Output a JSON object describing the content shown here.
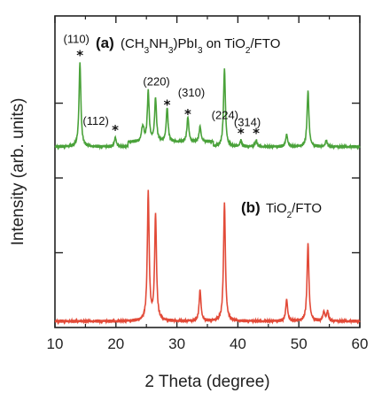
{
  "chart_data": {
    "type": "line",
    "xlabel": "2 Theta (degree)",
    "ylabel": "Intensity (arb. units)",
    "xlim": [
      10,
      60
    ],
    "x_ticks": [
      10,
      20,
      30,
      40,
      50,
      60
    ],
    "x_tick_labels": [
      "10",
      "20",
      "30",
      "40",
      "50",
      "60"
    ],
    "y_ticks_visible_labels": false,
    "grid": false,
    "series": [
      {
        "name": "(CH3NH3)PbI3 on TiO2/FTO",
        "tag": "(a)",
        "color": "#4aa23a",
        "baseline": 0.58,
        "peaks": [
          {
            "x": 14.1,
            "h": 0.27
          },
          {
            "x": 19.9,
            "h": 0.03
          },
          {
            "x": 24.3,
            "h": 0.03
          },
          {
            "x": 24.5,
            "h": 0.03
          },
          {
            "x": 25.3,
            "h": 0.16
          },
          {
            "x": 26.5,
            "h": 0.14
          },
          {
            "x": 28.4,
            "h": 0.11
          },
          {
            "x": 31.8,
            "h": 0.08
          },
          {
            "x": 33.8,
            "h": 0.05
          },
          {
            "x": 37.8,
            "h": 0.25
          },
          {
            "x": 40.5,
            "h": 0.02
          },
          {
            "x": 43.0,
            "h": 0.02
          },
          {
            "x": 48.0,
            "h": 0.04
          },
          {
            "x": 51.5,
            "h": 0.18
          },
          {
            "x": 54.5,
            "h": 0.02
          }
        ]
      },
      {
        "name": "TiO2/FTO",
        "tag": "(b)",
        "color": "#e24a38",
        "baseline": 0.02,
        "peaks": [
          {
            "x": 25.3,
            "h": 0.41
          },
          {
            "x": 26.5,
            "h": 0.34
          },
          {
            "x": 33.8,
            "h": 0.1
          },
          {
            "x": 37.8,
            "h": 0.38
          },
          {
            "x": 48.0,
            "h": 0.07
          },
          {
            "x": 51.5,
            "h": 0.25
          },
          {
            "x": 54.1,
            "h": 0.03
          },
          {
            "x": 54.7,
            "h": 0.03
          }
        ]
      }
    ],
    "annotations": [
      {
        "label": "(110)",
        "x": 14.1
      },
      {
        "label": "(112)",
        "x": 19.9
      },
      {
        "label": "(220)",
        "x": 28.4
      },
      {
        "label": "(310)",
        "x": 31.8
      },
      {
        "label": "(224)",
        "x": 40.5
      },
      {
        "label": "(314)",
        "x": 43.0
      }
    ]
  },
  "panels": {
    "a": {
      "tag": "(a)"
    },
    "b": {
      "tag": "(b)"
    }
  }
}
